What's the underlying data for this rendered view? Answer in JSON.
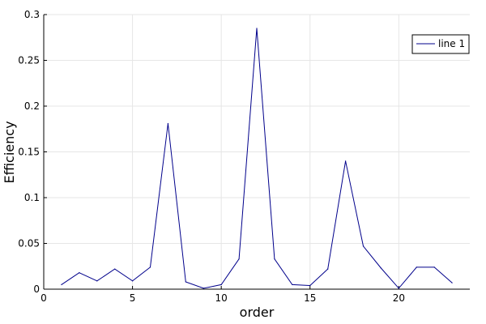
{
  "chart_data": {
    "type": "line",
    "xlabel": "order",
    "ylabel": "Efficiency",
    "xlim": [
      0,
      24
    ],
    "ylim": [
      0,
      0.3
    ],
    "xticks": [
      "0",
      "5",
      "10",
      "15",
      "20"
    ],
    "yticks": [
      "0",
      "0.05",
      "0.1",
      "0.15",
      "0.2",
      "0.25",
      "0.3"
    ],
    "grid": true,
    "legend_position": "top-right",
    "series": [
      {
        "name": "line 1",
        "color": "#00008b",
        "x": [
          1,
          2,
          3,
          4,
          5,
          6,
          7,
          8,
          9,
          10,
          11,
          12,
          13,
          14,
          15,
          16,
          17,
          18,
          19,
          20,
          21,
          22,
          23
        ],
        "y": [
          0.005,
          0.018,
          0.009,
          0.022,
          0.009,
          0.024,
          0.181,
          0.008,
          0.001,
          0.005,
          0.033,
          0.285,
          0.033,
          0.005,
          0.004,
          0.022,
          0.14,
          0.047,
          0.023,
          0.001,
          0.024,
          0.024,
          0.007
        ]
      }
    ]
  }
}
